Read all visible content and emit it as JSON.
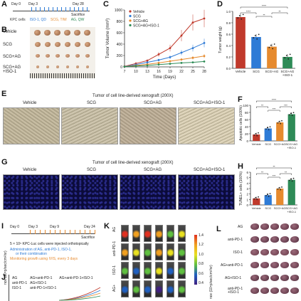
{
  "panel_letters": [
    "A",
    "B",
    "C",
    "D",
    "E",
    "F",
    "G",
    "H",
    "I",
    "J",
    "K",
    "L"
  ],
  "panelA": {
    "day0": "Day 0",
    "day3": "Day 3",
    "day28": "Day 28",
    "sacrifice": "Sacrifice",
    "legend": [
      "KPC cells",
      "ISO-1, QD",
      "SCG, TIW",
      "AG, QW"
    ]
  },
  "panelB": {
    "rows": [
      "Vehicle",
      "SCG",
      "SCG+AG",
      "SCG+AG\n+ISO-1"
    ]
  },
  "chart_data": [
    {
      "type": "line",
      "title": "",
      "xlabel": "Time (Days)",
      "ylabel": "Tumor Volume (mm³)",
      "x": [
        7,
        10,
        13,
        16,
        19,
        22,
        25,
        28
      ],
      "xticks": [
        "7",
        "10",
        "13",
        "16",
        "19",
        "22",
        "25",
        "28"
      ],
      "yticks": [
        "0",
        "200",
        "400",
        "600",
        "800",
        "1000"
      ],
      "ylim": [
        0,
        1000
      ],
      "series": [
        {
          "name": "Vehicle",
          "color": "#c0392b",
          "values": [
            10,
            60,
            110,
            220,
            330,
            550,
            780,
            850
          ]
        },
        {
          "name": "SCG",
          "color": "#2e7bd6",
          "values": [
            8,
            40,
            80,
            120,
            170,
            250,
            330,
            420
          ]
        },
        {
          "name": "SCG+AG",
          "color": "#e68a2e",
          "values": [
            6,
            25,
            45,
            70,
            100,
            130,
            160,
            190
          ]
        },
        {
          "name": "SCG+AG+ISO-1",
          "color": "#2e8b57",
          "values": [
            5,
            15,
            25,
            40,
            55,
            70,
            80,
            95
          ]
        }
      ]
    },
    {
      "type": "bar",
      "ylabel": "Tumor weight (g)",
      "categories": [
        "Vehicle",
        "SCG",
        "SCG+AG",
        "SCG+AG\n+ISO-1"
      ],
      "values": [
        0.9,
        0.55,
        0.38,
        0.2
      ],
      "colors": [
        "#c0392b",
        "#2e7bd6",
        "#e68a2e",
        "#2e8b57"
      ],
      "yticks": [
        "0.0",
        "0.2",
        "0.4",
        "0.6",
        "0.8",
        "1.0"
      ],
      "ylim": [
        0,
        1.0
      ],
      "sig": [
        "****",
        "**",
        "**",
        "****"
      ]
    },
    {
      "type": "bar",
      "ylabel": "Apoptotic cells (100%)",
      "categories": [
        "Vehicle",
        "SCG",
        "SCG+AG",
        "SCG+AG\n+ISO-1"
      ],
      "values": [
        18,
        35,
        52,
        75
      ],
      "colors": [
        "#c0392b",
        "#2e7bd6",
        "#e68a2e",
        "#2e8b57"
      ],
      "yticks": [
        "0",
        "20",
        "40",
        "60",
        "80",
        "100"
      ],
      "ylim": [
        0,
        100
      ],
      "sig": [
        "**",
        "***",
        "***",
        "****"
      ]
    },
    {
      "type": "bar",
      "ylabel": "TUNEL+ cells (100%)",
      "categories": [
        "Vehicle",
        "SCG",
        "SCG+AG",
        "SCG+AG\n+ISO-1"
      ],
      "values": [
        1.2,
        1.8,
        3.0,
        4.6
      ],
      "colors": [
        "#c0392b",
        "#2e7bd6",
        "#e68a2e",
        "#2e8b57"
      ],
      "yticks": [
        "0",
        "1",
        "2",
        "3",
        "4",
        "5",
        "6"
      ],
      "ylim": [
        0,
        6
      ],
      "sig": [
        "**",
        "***",
        "**",
        "**"
      ]
    }
  ],
  "panelE": {
    "title": "Tumor of cell line-derived xenograft (200X)",
    "cols": [
      "Vehicle",
      "SCG",
      "SCG+AG",
      "SCG+AG+ISO-1"
    ]
  },
  "panelG": {
    "title": "Tumor of cell line-derived xenograft (200X)",
    "cols": [
      "Vehicle",
      "SCG",
      "SCG+AG",
      "SCG+AG+ISO-1"
    ]
  },
  "panelI": {
    "day0": "Day 0",
    "day3": "Day 3",
    "day9": "Day 9",
    "day24": "Day 24",
    "sacrifice": "Sacrifice",
    "notes": [
      "5 × 10⁵ KPC-Luc cells were injected orthotopically",
      "Administration of AG, anti-PD-1, ISO-1,",
      "or their combination",
      "Monitoring growth using IVIS, every 3 days"
    ]
  },
  "panelJ": {
    "legend": [
      "AG",
      "anti-PD-1",
      "ISO-1",
      "AG+anti-PD-1",
      "AG+ISO-1",
      "anti-PD-1+ISO-1",
      "AG+anti-PD-1+ISO-1"
    ],
    "ylabel": "nce (10⁸p/sec/cm²/sr)"
  },
  "panelK": {
    "rows": [
      "AG",
      "anti-PD-1",
      "ISO-1",
      "AG+"
    ],
    "scale_ticks": [
      "1.4",
      "1.2",
      "1.0",
      "0.8",
      "0.6",
      "0.4"
    ],
    "scale_label": "nce (10⁸p/sec/cm²/sr)"
  },
  "panelL": {
    "rows": [
      "AG",
      "anti-PD-1",
      "ISO-1",
      "AG+anti-PD-1",
      "AG+ISO-1",
      "anti-PD-1\n+ISO-1"
    ]
  }
}
